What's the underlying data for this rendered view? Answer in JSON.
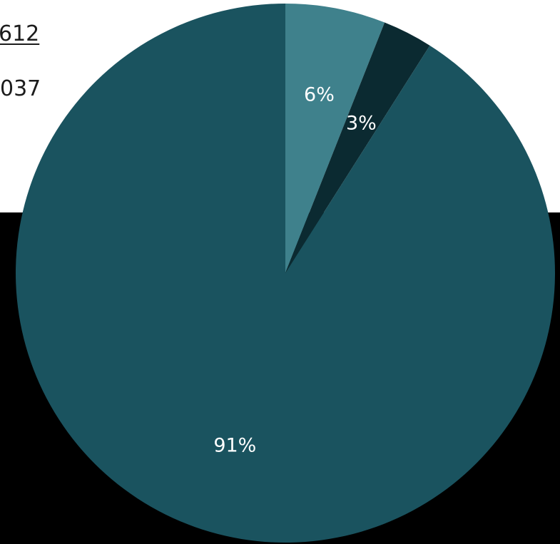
{
  "background": {
    "partial_numbers": [
      "612",
      "037"
    ]
  },
  "chart_data": {
    "type": "pie",
    "start_angle_deg": 0,
    "direction": "clockwise",
    "slices": [
      {
        "value": 6,
        "label": "6%",
        "color": "#3f818c"
      },
      {
        "value": 3,
        "label": "3%",
        "color": "#0b2a31"
      },
      {
        "value": 91,
        "label": "91%",
        "color": "#1a535f"
      }
    ],
    "label_color": "#ffffff",
    "legend": "none"
  }
}
